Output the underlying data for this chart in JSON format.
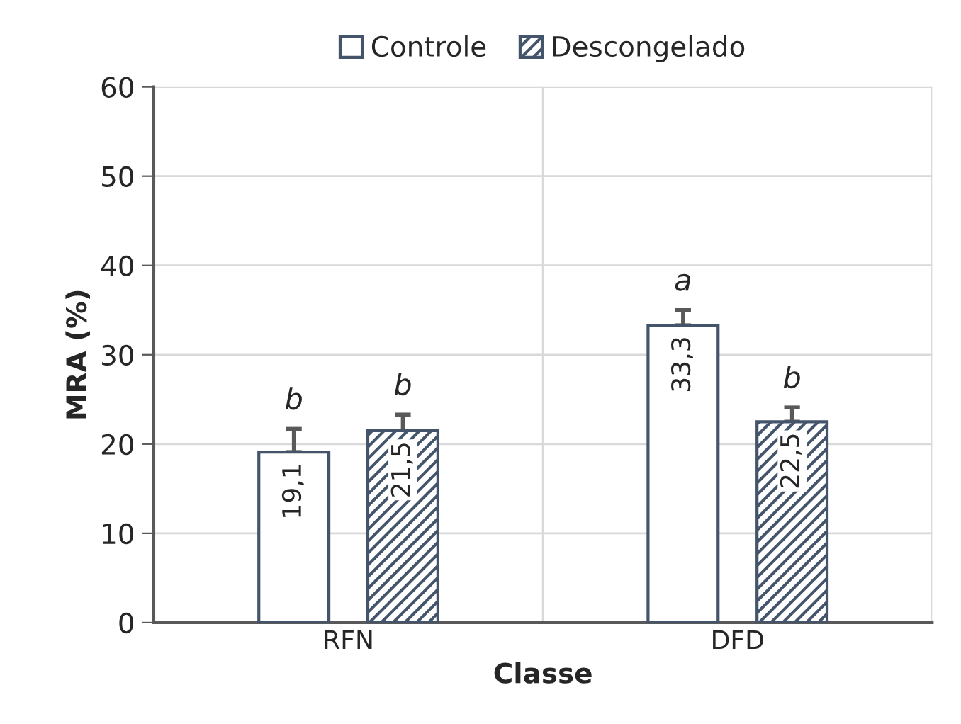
{
  "chart_data": {
    "type": "bar",
    "xlabel": "Classe",
    "ylabel": "MRA (%)",
    "categories": [
      "RFN",
      "DFD"
    ],
    "series": [
      {
        "name": "Controle",
        "color": "#44546a",
        "values": [
          19.1,
          33.3
        ],
        "value_labels": [
          "19,1",
          "33,3"
        ],
        "errors": [
          [
            19.1,
            21.7
          ],
          [
            33.3,
            35.0
          ]
        ]
      },
      {
        "name": "Descongelado",
        "color": "#44546a",
        "values": [
          21.5,
          22.5
        ],
        "value_labels": [
          "21,5",
          "22,5"
        ],
        "errors": [
          [
            21.5,
            23.3
          ],
          [
            22.5,
            24.1
          ]
        ]
      }
    ],
    "annotations": [
      "b",
      "b",
      "a",
      "b"
    ],
    "ylim": [
      0,
      60
    ],
    "yticks": [
      0,
      10,
      20,
      30,
      40,
      50,
      60
    ],
    "grid": true,
    "legend": "top"
  }
}
